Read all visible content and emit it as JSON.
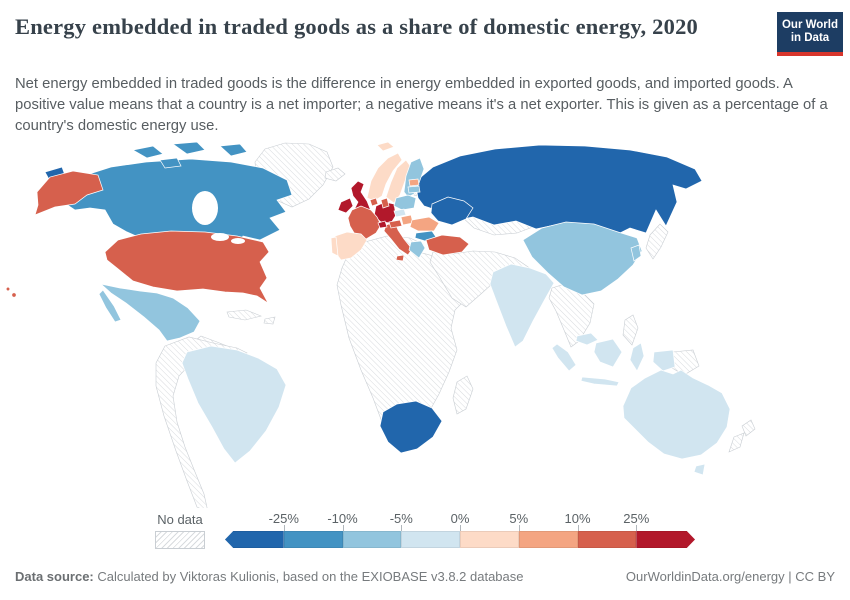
{
  "header": {
    "title": "Energy embedded in traded goods as a share of domestic energy, 2020",
    "logo": {
      "line1": "Our World",
      "line2": "in Data",
      "bg_color": "#1d3d63",
      "accent_color": "#d8352c"
    }
  },
  "subtitle": "Net energy embedded in traded goods is the difference in energy embedded in exported goods, and imported goods. A positive value means that a country is a net importer; a negative means it's a net exporter. This is given as a percentage of a country's domestic energy use.",
  "legend": {
    "no_data_label": "No data",
    "tick_labels": [
      "-25%",
      "-10%",
      "-5%",
      "0%",
      "5%",
      "10%",
      "25%"
    ],
    "colors": [
      "#2166ac",
      "#4393c3",
      "#92c5de",
      "#d1e5f0",
      "#fddbc7",
      "#f4a582",
      "#d6604d",
      "#b2182b"
    ]
  },
  "footer": {
    "source_label": "Data source:",
    "source_text": " Calculated by Viktoras Kulionis, based on the EXIOBASE v3.8.2 database",
    "link": "OurWorldinData.org/energy",
    "separator": " | ",
    "license": "CC BY"
  },
  "chart_data": {
    "type": "choropleth",
    "title": "Energy embedded in traded goods as a share of domestic energy",
    "year": "2020",
    "unit": "% of domestic energy use",
    "legend_position": "bottom",
    "bins": [
      {
        "label": "less than -25%",
        "color": "#2166ac"
      },
      {
        "label": "-25% to -10%",
        "color": "#4393c3"
      },
      {
        "label": "-10% to -5%",
        "color": "#92c5de"
      },
      {
        "label": "-5% to 0%",
        "color": "#d1e5f0"
      },
      {
        "label": "0% to 5%",
        "color": "#fddbc7"
      },
      {
        "label": "5% to 10%",
        "color": "#f4a582"
      },
      {
        "label": "10% to 25%",
        "color": "#d6604d"
      },
      {
        "label": "more than 25%",
        "color": "#b2182b"
      }
    ],
    "countries": {
      "russia": {
        "name": "Russia",
        "value_bin": "less than -25%",
        "color": "#2166ac"
      },
      "ukraine": {
        "name": "Ukraine",
        "value_bin": "less than -25%",
        "color": "#2166ac"
      },
      "south-africa": {
        "name": "South Africa",
        "value_bin": "less than -25%",
        "color": "#2166ac"
      },
      "canada": {
        "name": "Canada",
        "value_bin": "-25% to -10%",
        "color": "#4393c3"
      },
      "bulgaria": {
        "name": "Bulgaria",
        "value_bin": "-25% to -10%",
        "color": "#4393c3"
      },
      "mexico": {
        "name": "Mexico",
        "value_bin": "-10% to -5%",
        "color": "#92c5de"
      },
      "china": {
        "name": "China",
        "value_bin": "-10% to -5%",
        "color": "#92c5de"
      },
      "finland": {
        "name": "Finland",
        "value_bin": "-10% to -5%",
        "color": "#92c5de"
      },
      "poland": {
        "name": "Poland",
        "value_bin": "-10% to -5%",
        "color": "#92c5de"
      },
      "greece": {
        "name": "Greece",
        "value_bin": "-10% to -5%",
        "color": "#92c5de"
      },
      "south-korea": {
        "name": "South Korea",
        "value_bin": "-10% to -5%",
        "color": "#92c5de"
      },
      "latvia": {
        "name": "Latvia",
        "value_bin": "-10% to -5%",
        "color": "#92c5de"
      },
      "brazil": {
        "name": "Brazil",
        "value_bin": "-5% to 0%",
        "color": "#d1e5f0"
      },
      "india": {
        "name": "India",
        "value_bin": "-5% to 0%",
        "color": "#d1e5f0"
      },
      "australia": {
        "name": "Australia",
        "value_bin": "-5% to 0%",
        "color": "#d1e5f0"
      },
      "indonesia": {
        "name": "Indonesia",
        "value_bin": "-5% to 0%",
        "color": "#d1e5f0"
      },
      "malaysia": {
        "name": "Malaysia",
        "value_bin": "-5% to 0%",
        "color": "#d1e5f0"
      },
      "czechia": {
        "name": "Czechia",
        "value_bin": "-5% to 0%",
        "color": "#d1e5f0"
      },
      "norway": {
        "name": "Norway",
        "value_bin": "0% to 5%",
        "color": "#fddbc7"
      },
      "sweden": {
        "name": "Sweden",
        "value_bin": "0% to 5%",
        "color": "#fddbc7"
      },
      "spain": {
        "name": "Spain",
        "value_bin": "0% to 5%",
        "color": "#fddbc7"
      },
      "portugal": {
        "name": "Portugal",
        "value_bin": "0% to 5%",
        "color": "#fddbc7"
      },
      "romania": {
        "name": "Romania",
        "value_bin": "5% to 10%",
        "color": "#f4a582"
      },
      "estonia": {
        "name": "Estonia",
        "value_bin": "5% to 10%",
        "color": "#f4a582"
      },
      "hungary": {
        "name": "Hungary",
        "value_bin": "5% to 10%",
        "color": "#f4a582"
      },
      "united-states": {
        "name": "United States",
        "value_bin": "10% to 25%",
        "color": "#d6604d"
      },
      "france": {
        "name": "France",
        "value_bin": "10% to 25%",
        "color": "#d6604d"
      },
      "italy": {
        "name": "Italy",
        "value_bin": "10% to 25%",
        "color": "#d6604d"
      },
      "turkey": {
        "name": "Turkey",
        "value_bin": "10% to 25%",
        "color": "#d6604d"
      },
      "denmark": {
        "name": "Denmark",
        "value_bin": "10% to 25%",
        "color": "#d6604d"
      },
      "netherlands": {
        "name": "Netherlands",
        "value_bin": "10% to 25%",
        "color": "#d6604d"
      },
      "austria": {
        "name": "Austria",
        "value_bin": "10% to 25%",
        "color": "#d6604d"
      },
      "united-kingdom": {
        "name": "United Kingdom",
        "value_bin": "more than 25%",
        "color": "#b2182b"
      },
      "ireland": {
        "name": "Ireland",
        "value_bin": "more than 25%",
        "color": "#b2182b"
      },
      "germany": {
        "name": "Germany",
        "value_bin": "more than 25%",
        "color": "#b2182b"
      },
      "switzerland": {
        "name": "Switzerland",
        "value_bin": "more than 25%",
        "color": "#b2182b"
      }
    },
    "no_data_regions": [
      "Greenland",
      "Iceland",
      "Most of Africa",
      "Madagascar",
      "Middle East",
      "Central Asia",
      "Kazakhstan",
      "Mongolia",
      "Belarus",
      "Japan",
      "Mainland Southeast Asia",
      "Philippines",
      "Papua New Guinea",
      "New Zealand",
      "Andean South America",
      "Argentina",
      "Central America",
      "Caribbean"
    ]
  }
}
